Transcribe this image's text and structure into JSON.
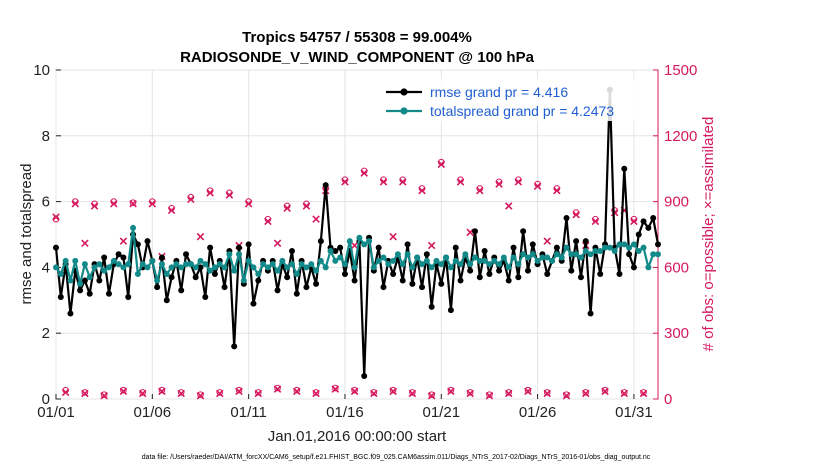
{
  "chart_data": {
    "type": "line",
    "title_line1": "Tropics 54757 / 55308 = 99.004%",
    "title_line2": "RADIOSONDE_V_WIND_COMPONENT @ 100 hPa",
    "xlabel": "Jan.01,2016 00:00:00 start",
    "ylabel_left": "rmse and totalspread",
    "ylabel_right": "# of obs: o=possible; ×=assimilated",
    "footer": "data file: /Users/raeder/DAI/ATM_forcXX/CAM6_setup/f.e21.FHIST_BGC.f09_025.CAM6assim.011/Diags_NTrS_2017-02/Diags_NTrS_2016-01/obs_diag_output.nc",
    "xlim": [
      0,
      31.25
    ],
    "ylim_left": [
      0,
      10
    ],
    "ylim_right": [
      0,
      1500
    ],
    "x_ticks": [
      0,
      5,
      10,
      15,
      20,
      25,
      30
    ],
    "x_tick_labels": [
      "01/01",
      "01/06",
      "01/11",
      "01/16",
      "01/21",
      "01/26",
      "01/31"
    ],
    "y_left_ticks": [
      "0",
      "2",
      "4",
      "6",
      "8",
      "10"
    ],
    "y_right_ticks": [
      "0",
      "300",
      "600",
      "900",
      "1200",
      "1500"
    ],
    "colors": {
      "rmse": "#000000",
      "spread": "#138a8a",
      "obs": "#d6195e",
      "axis": "#222222"
    },
    "series": [
      {
        "name": "rmse",
        "legend": "rmse grand pr = 4.416",
        "axis": "left",
        "start": 0,
        "step": 0.25,
        "values": [
          4.6,
          3.1,
          4.1,
          2.6,
          3.9,
          3.3,
          3.6,
          3.2,
          4.1,
          3.6,
          4.3,
          3.2,
          4.1,
          4.4,
          4.3,
          3.1,
          5.0,
          4.7,
          4.0,
          4.8,
          4.2,
          3.4,
          4.3,
          3.0,
          3.7,
          4.2,
          3.3,
          4.4,
          4.1,
          3.7,
          4.0,
          3.1,
          4.6,
          3.8,
          4.2,
          3.4,
          4.5,
          1.6,
          4.6,
          3.5,
          4.7,
          2.9,
          3.6,
          4.2,
          3.9,
          4.2,
          3.3,
          4.1,
          3.7,
          4.5,
          3.2,
          4.2,
          3.4,
          4.0,
          3.5,
          4.8,
          6.5,
          4.6,
          4.5,
          4.6,
          3.8,
          4.5,
          3.6,
          4.8,
          0.7,
          4.9,
          3.9,
          4.6,
          3.4,
          4.2,
          3.8,
          4.3,
          3.6,
          4.7,
          3.5,
          4.3,
          3.4,
          4.4,
          2.8,
          4.1,
          3.5,
          4.3,
          2.7,
          4.6,
          3.6,
          4.3,
          3.9,
          5.1,
          3.7,
          4.5,
          3.8,
          4.3,
          3.9,
          4.2,
          3.6,
          4.6,
          3.7,
          5.1,
          3.9,
          4.7,
          4.1,
          4.4,
          3.8,
          4.2,
          4.6,
          4.2,
          5.5,
          3.9,
          4.8,
          3.7,
          4.8,
          2.6,
          4.6,
          3.8,
          4.7,
          9.4,
          4.6,
          3.8,
          7.0,
          4.4,
          4.0,
          5.0,
          5.4,
          5.2,
          5.5,
          4.7
        ]
      },
      {
        "name": "totalspread",
        "legend": "totalspread grand pr = 4.2473",
        "axis": "left",
        "start": 0,
        "step": 0.25,
        "values": [
          4.0,
          3.8,
          4.2,
          3.6,
          4.2,
          3.5,
          4.1,
          3.7,
          4.0,
          4.1,
          3.9,
          4.0,
          4.2,
          4.1,
          4.0,
          4.1,
          5.2,
          3.8,
          4.1,
          4.0,
          4.2,
          3.6,
          4.1,
          3.8,
          4.0,
          4.1,
          4.0,
          4.1,
          4.1,
          4.0,
          4.2,
          4.1,
          3.9,
          4.0,
          4.1,
          4.0,
          4.4,
          3.9,
          4.4,
          3.6,
          4.2,
          4.0,
          3.8,
          4.1,
          4.0,
          4.1,
          3.9,
          4.2,
          4.0,
          4.1,
          3.8,
          4.1,
          4.0,
          4.1,
          3.9,
          4.2,
          4.0,
          4.5,
          4.2,
          4.3,
          4.1,
          4.8,
          4.0,
          4.9,
          4.7,
          4.8,
          4.0,
          4.2,
          4.3,
          4.1,
          4.2,
          4.4,
          4.1,
          4.4,
          4.0,
          4.3,
          4.1,
          4.2,
          4.0,
          4.2,
          4.1,
          4.3,
          4.0,
          4.2,
          4.1,
          4.4,
          4.1,
          4.3,
          4.2,
          4.2,
          4.1,
          4.2,
          4.1,
          4.3,
          4.0,
          4.3,
          4.1,
          4.4,
          4.3,
          4.4,
          4.2,
          4.3,
          4.3,
          4.2,
          4.4,
          4.3,
          4.6,
          4.4,
          4.4,
          4.3,
          4.5,
          4.4,
          4.5,
          4.5,
          4.6,
          4.6,
          4.5,
          4.7,
          4.7,
          4.6,
          4.7,
          4.5,
          4.6,
          4.0,
          4.4,
          4.4
        ]
      },
      {
        "name": "possible",
        "axis": "right",
        "start": 0,
        "step": 0.5,
        "values": [
          820,
          40,
          900,
          30,
          890,
          20,
          900,
          40,
          895,
          30,
          900,
          40,
          870,
          30,
          920,
          20,
          950,
          30,
          940,
          40,
          900,
          30,
          820,
          50,
          880,
          40,
          890,
          30,
          960,
          50,
          1000,
          40,
          1040,
          30,
          1000,
          40,
          1000,
          30,
          960,
          20,
          1080,
          40,
          1000,
          30,
          960,
          20,
          990,
          30,
          1000,
          40,
          980,
          30,
          960,
          20,
          850,
          30,
          820,
          40,
          860,
          30,
          820,
          30
        ]
      },
      {
        "name": "assimilated",
        "axis": "right",
        "start": 0,
        "step": 0.5,
        "values": [
          830,
          30,
          890,
          25,
          880,
          15,
          890,
          35,
          890,
          25,
          890,
          35,
          860,
          25,
          910,
          15,
          940,
          25,
          930,
          35,
          890,
          25,
          810,
          45,
          870,
          35,
          880,
          25,
          950,
          45,
          990,
          35,
          1030,
          25,
          990,
          35,
          990,
          25,
          950,
          15,
          1070,
          35,
          990,
          25,
          950,
          15,
          980,
          25,
          990,
          35,
          970,
          25,
          950,
          15,
          840,
          25,
          810,
          35,
          850,
          25,
          810,
          25
        ]
      },
      {
        "name": "mid_counts",
        "axis": "right",
        "start": 1.5,
        "step": 2,
        "values": [
          710,
          720,
          650,
          740,
          700,
          710,
          820,
          700,
          740,
          700,
          760,
          880,
          720,
          700,
          860,
          810
        ]
      }
    ]
  }
}
